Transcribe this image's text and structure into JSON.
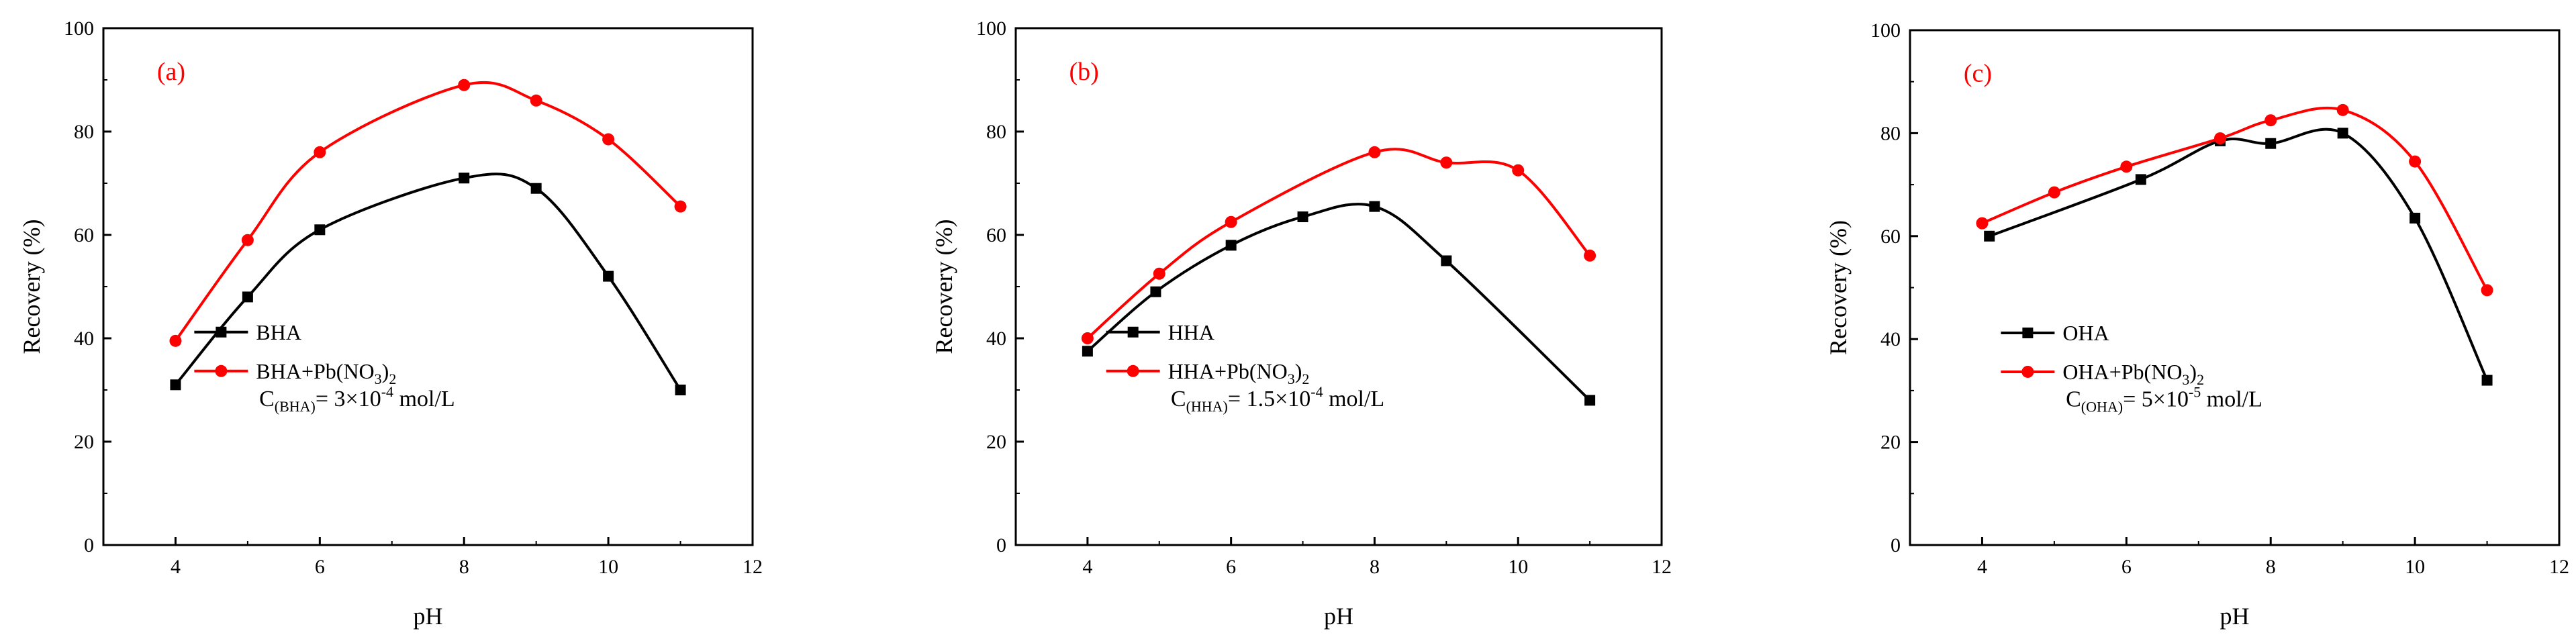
{
  "chart_data": [
    {
      "type": "line",
      "panel_label": "(a)",
      "xlabel": "pH",
      "ylabel": "Recovery (%)",
      "xlim": [
        3,
        12
      ],
      "ylim": [
        0,
        100
      ],
      "x_ticks": [
        "4",
        "6",
        "8",
        "10",
        "12"
      ],
      "y_ticks": [
        "0",
        "20",
        "40",
        "60",
        "80",
        "100"
      ],
      "legend_position": "center-left",
      "annotation": {
        "main": "C",
        "sub": "(BHA)",
        "rest": "= 3×10",
        "sup": "-4",
        "tail": " mol/L"
      },
      "series": [
        {
          "name": "BHA",
          "label_main": "BHA",
          "label_tail": "",
          "color": "#000000",
          "marker": "square",
          "x": [
            4,
            5,
            6,
            8,
            9,
            10,
            11
          ],
          "values": [
            31,
            48,
            61,
            71,
            69,
            52,
            30
          ]
        },
        {
          "name": "BHA+Pb(NO3)2",
          "label_main": "BHA+Pb(NO",
          "label_sub": "3",
          "label_tail": ")",
          "label_sub2": "2",
          "color": "#ff0000",
          "marker": "circle",
          "x": [
            4,
            5,
            6,
            8,
            9,
            10,
            11
          ],
          "values": [
            39.5,
            59,
            76,
            89,
            86,
            78.5,
            65.5
          ]
        }
      ]
    },
    {
      "type": "line",
      "panel_label": "(b)",
      "xlabel": "pH",
      "ylabel": "Recovery (%)",
      "xlim": [
        3,
        12
      ],
      "ylim": [
        0,
        100
      ],
      "x_ticks": [
        "4",
        "6",
        "8",
        "10",
        "12"
      ],
      "y_ticks": [
        "0",
        "20",
        "40",
        "60",
        "80",
        "100"
      ],
      "legend_position": "center-left",
      "annotation": {
        "main": "C",
        "sub": "(HHA)",
        "rest": "= 1.5×10",
        "sup": "-4",
        "tail": " mol/L"
      },
      "series": [
        {
          "name": "HHA",
          "label_main": "HHA",
          "label_tail": "",
          "color": "#000000",
          "marker": "square",
          "x": [
            4,
            4.95,
            6,
            7,
            8,
            9,
            11
          ],
          "values": [
            37.5,
            49,
            58,
            63.5,
            65.5,
            55,
            28
          ]
        },
        {
          "name": "HHA+Pb(NO3)2",
          "label_main": "HHA+Pb(NO",
          "label_sub": "3",
          "label_tail": ")",
          "label_sub2": "2",
          "color": "#ff0000",
          "marker": "circle",
          "x": [
            4,
            5,
            6,
            8,
            9,
            10,
            11
          ],
          "values": [
            40,
            52.5,
            62.5,
            76,
            74,
            72.5,
            56
          ]
        }
      ]
    },
    {
      "type": "line",
      "panel_label": "(c)",
      "xlabel": "pH",
      "ylabel": "Recovery (%)",
      "xlim": [
        3,
        12
      ],
      "ylim": [
        0,
        100
      ],
      "x_ticks": [
        "4",
        "6",
        "8",
        "10",
        "12"
      ],
      "y_ticks": [
        "0",
        "20",
        "40",
        "60",
        "80",
        "100"
      ],
      "legend_position": "center-left",
      "annotation": {
        "main": "C",
        "sub": "(OHA)",
        "rest": "= 5×10",
        "sup": "-5",
        "tail": " mol/L"
      },
      "series": [
        {
          "name": "OHA",
          "label_main": "OHA",
          "label_tail": "",
          "color": "#000000",
          "marker": "square",
          "x": [
            4.1,
            6.2,
            7.3,
            8,
            9,
            10,
            11
          ],
          "values": [
            60,
            71,
            78.5,
            78,
            80,
            63.5,
            32
          ]
        },
        {
          "name": "OHA+Pb(NO3)2",
          "label_main": "OHA+Pb(NO",
          "label_sub": "3",
          "label_tail": ")",
          "label_sub2": "2",
          "color": "#ff0000",
          "marker": "circle",
          "x": [
            4,
            5,
            6,
            7.3,
            8,
            9,
            10,
            11
          ],
          "values": [
            62.5,
            68.5,
            73.5,
            79,
            82.5,
            84.5,
            74.5,
            49.5
          ]
        }
      ]
    }
  ]
}
